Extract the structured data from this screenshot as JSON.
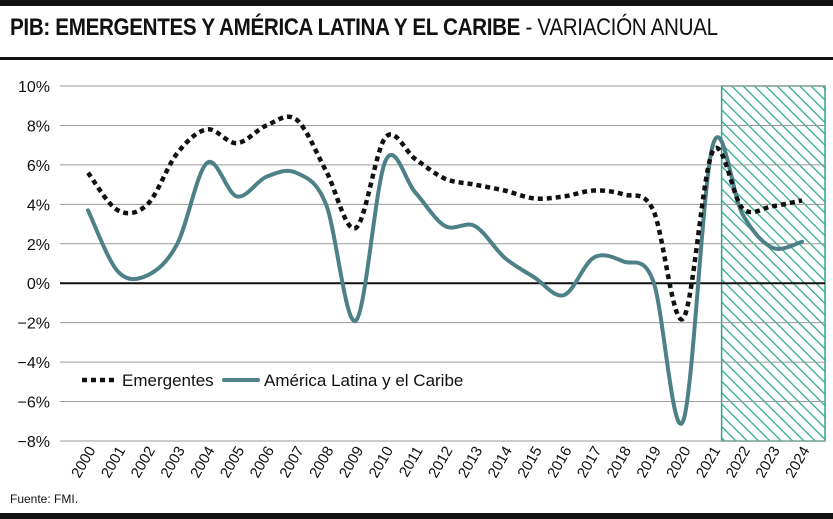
{
  "header": {
    "title_bold": "PIB: EMERGENTES Y AMÉRICA LATINA Y EL CARIBE",
    "title_separator": " - ",
    "title_light": "VARIACIÓN ANUAL"
  },
  "source": "Fuente: FMI.",
  "colors": {
    "emergentes": "#111111",
    "latam": "#4e8088",
    "forecast_hatch": "#2aa88a"
  },
  "chart_data": {
    "type": "line",
    "title": "PIB: EMERGENTES Y AMÉRICA LATINA Y EL CARIBE - VARIACIÓN ANUAL",
    "xlabel": "",
    "ylabel": "",
    "x": [
      "2000",
      "2001",
      "2002",
      "2003",
      "2004",
      "2005",
      "2006",
      "2007",
      "2008",
      "2009",
      "2010",
      "2011",
      "2012",
      "2013",
      "2014",
      "2015",
      "2016",
      "2017",
      "2018",
      "2019",
      "2020",
      "2021",
      "2022",
      "2023",
      "2024"
    ],
    "ylim": [
      -8,
      10
    ],
    "yticks": [
      -8,
      -6,
      -4,
      -2,
      0,
      2,
      4,
      6,
      8,
      10
    ],
    "ytick_labels": [
      "−8%",
      "−6%",
      "−4%",
      "−2%",
      "0%",
      "2%",
      "4%",
      "6%",
      "8%",
      "10%"
    ],
    "grid": true,
    "forecast_from": "2021",
    "legend_position": "lower-left",
    "series": [
      {
        "name": "Emergentes",
        "style": "dotted",
        "values": [
          5.6,
          3.7,
          4.0,
          6.6,
          7.8,
          7.1,
          8.0,
          8.3,
          5.7,
          2.8,
          7.4,
          6.3,
          5.3,
          5.0,
          4.7,
          4.3,
          4.4,
          4.7,
          4.5,
          3.7,
          -1.8,
          6.7,
          3.8,
          3.9,
          4.2
        ]
      },
      {
        "name": "América Latina y el Caribe",
        "style": "solid",
        "values": [
          3.7,
          0.6,
          0.4,
          2.0,
          6.1,
          4.4,
          5.4,
          5.6,
          4.0,
          -1.9,
          6.2,
          4.6,
          2.9,
          2.9,
          1.3,
          0.3,
          -0.6,
          1.3,
          1.1,
          0.1,
          -7.0,
          7.0,
          3.5,
          1.8,
          2.1
        ]
      }
    ]
  }
}
